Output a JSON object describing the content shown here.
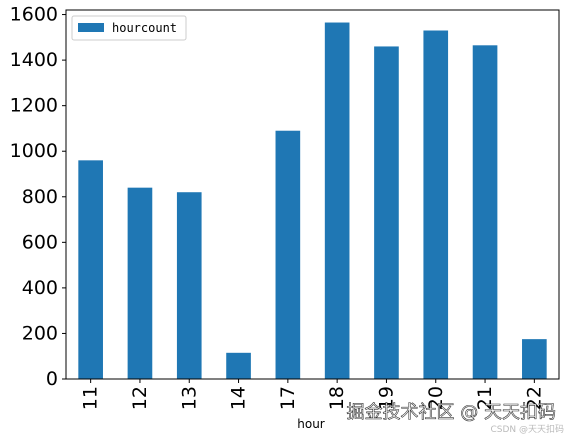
{
  "chart_data": {
    "type": "bar",
    "categories": [
      "11",
      "12",
      "13",
      "14",
      "17",
      "18",
      "19",
      "20",
      "21",
      "22"
    ],
    "series": [
      {
        "name": "hourcount",
        "values": [
          960,
          840,
          820,
          115,
          1090,
          1565,
          1460,
          1530,
          1465,
          175
        ]
      }
    ],
    "xlabel": "hour",
    "ylabel": "",
    "ylim": [
      0,
      1620
    ],
    "yticks": [
      0,
      200,
      400,
      600,
      800,
      1000,
      1200,
      1400,
      1600
    ],
    "grid": false,
    "legend_position": "top-left",
    "colors": {
      "bar": "#1f77b4",
      "axes": "#000000"
    }
  },
  "watermark": {
    "main": "掘金技术社区 @ 天天扣码",
    "sub": "CSDN @天天扣码"
  }
}
